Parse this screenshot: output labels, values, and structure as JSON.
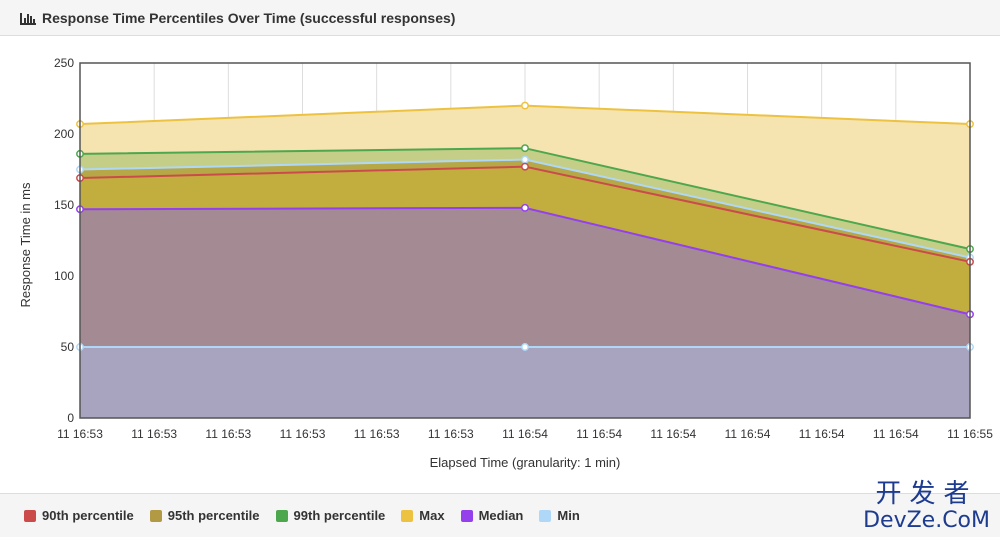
{
  "header": {
    "title": "Response Time Percentiles Over Time (successful responses)",
    "icon": "bar-chart-icon"
  },
  "chart_data": {
    "type": "area",
    "title": "",
    "xlabel": "Elapsed Time (granularity: 1 min)",
    "ylabel": "Response Time in ms",
    "ylim": [
      0,
      250
    ],
    "yticks": [
      0,
      50,
      100,
      150,
      200,
      250
    ],
    "x": [
      "11 16:53",
      "11 16:54",
      "11 16:55"
    ],
    "xtick_labels": [
      "11 16:53",
      "11 16:53",
      "11 16:53",
      "11 16:53",
      "11 16:53",
      "11 16:53",
      "11 16:54",
      "11 16:54",
      "11 16:54",
      "11 16:54",
      "11 16:54",
      "11 16:54",
      "11 16:55"
    ],
    "grid": true,
    "legend_position": "bottom",
    "series": [
      {
        "name": "Max",
        "values": [
          207,
          220,
          207
        ],
        "color": "#EDC240",
        "fill": "#F5E3B0"
      },
      {
        "name": "99th percentile",
        "values": [
          186,
          190,
          119
        ],
        "color": "#4DA74D",
        "fill": "#C5CE87"
      },
      {
        "name": "95th percentile",
        "values": [
          175,
          182,
          113
        ],
        "color": "#AFD8F8",
        "fill": "#B7A847"
      },
      {
        "name": "90th percentile",
        "values": [
          169,
          177,
          110
        ],
        "color": "#CB4B4B",
        "fill": "#C2AD3F"
      },
      {
        "name": "Median",
        "values": [
          147,
          148,
          73
        ],
        "color": "#9440ED",
        "fill": "#A48A92"
      },
      {
        "name": "Min",
        "values": [
          50,
          50,
          50
        ],
        "color": "#AFD8F8",
        "fill": "#A8A3BE"
      }
    ]
  },
  "legend": [
    {
      "label": "90th percentile",
      "color": "#CB4B4B"
    },
    {
      "label": "95th percentile",
      "color": "#B29A45"
    },
    {
      "label": "99th percentile",
      "color": "#4DA74D"
    },
    {
      "label": "Max",
      "color": "#EDC240"
    },
    {
      "label": "Median",
      "color": "#9440ED"
    },
    {
      "label": "Min",
      "color": "#AFD8F8"
    }
  ],
  "watermark": {
    "top": "开发者",
    "bottom": "DevZe.CoM"
  }
}
